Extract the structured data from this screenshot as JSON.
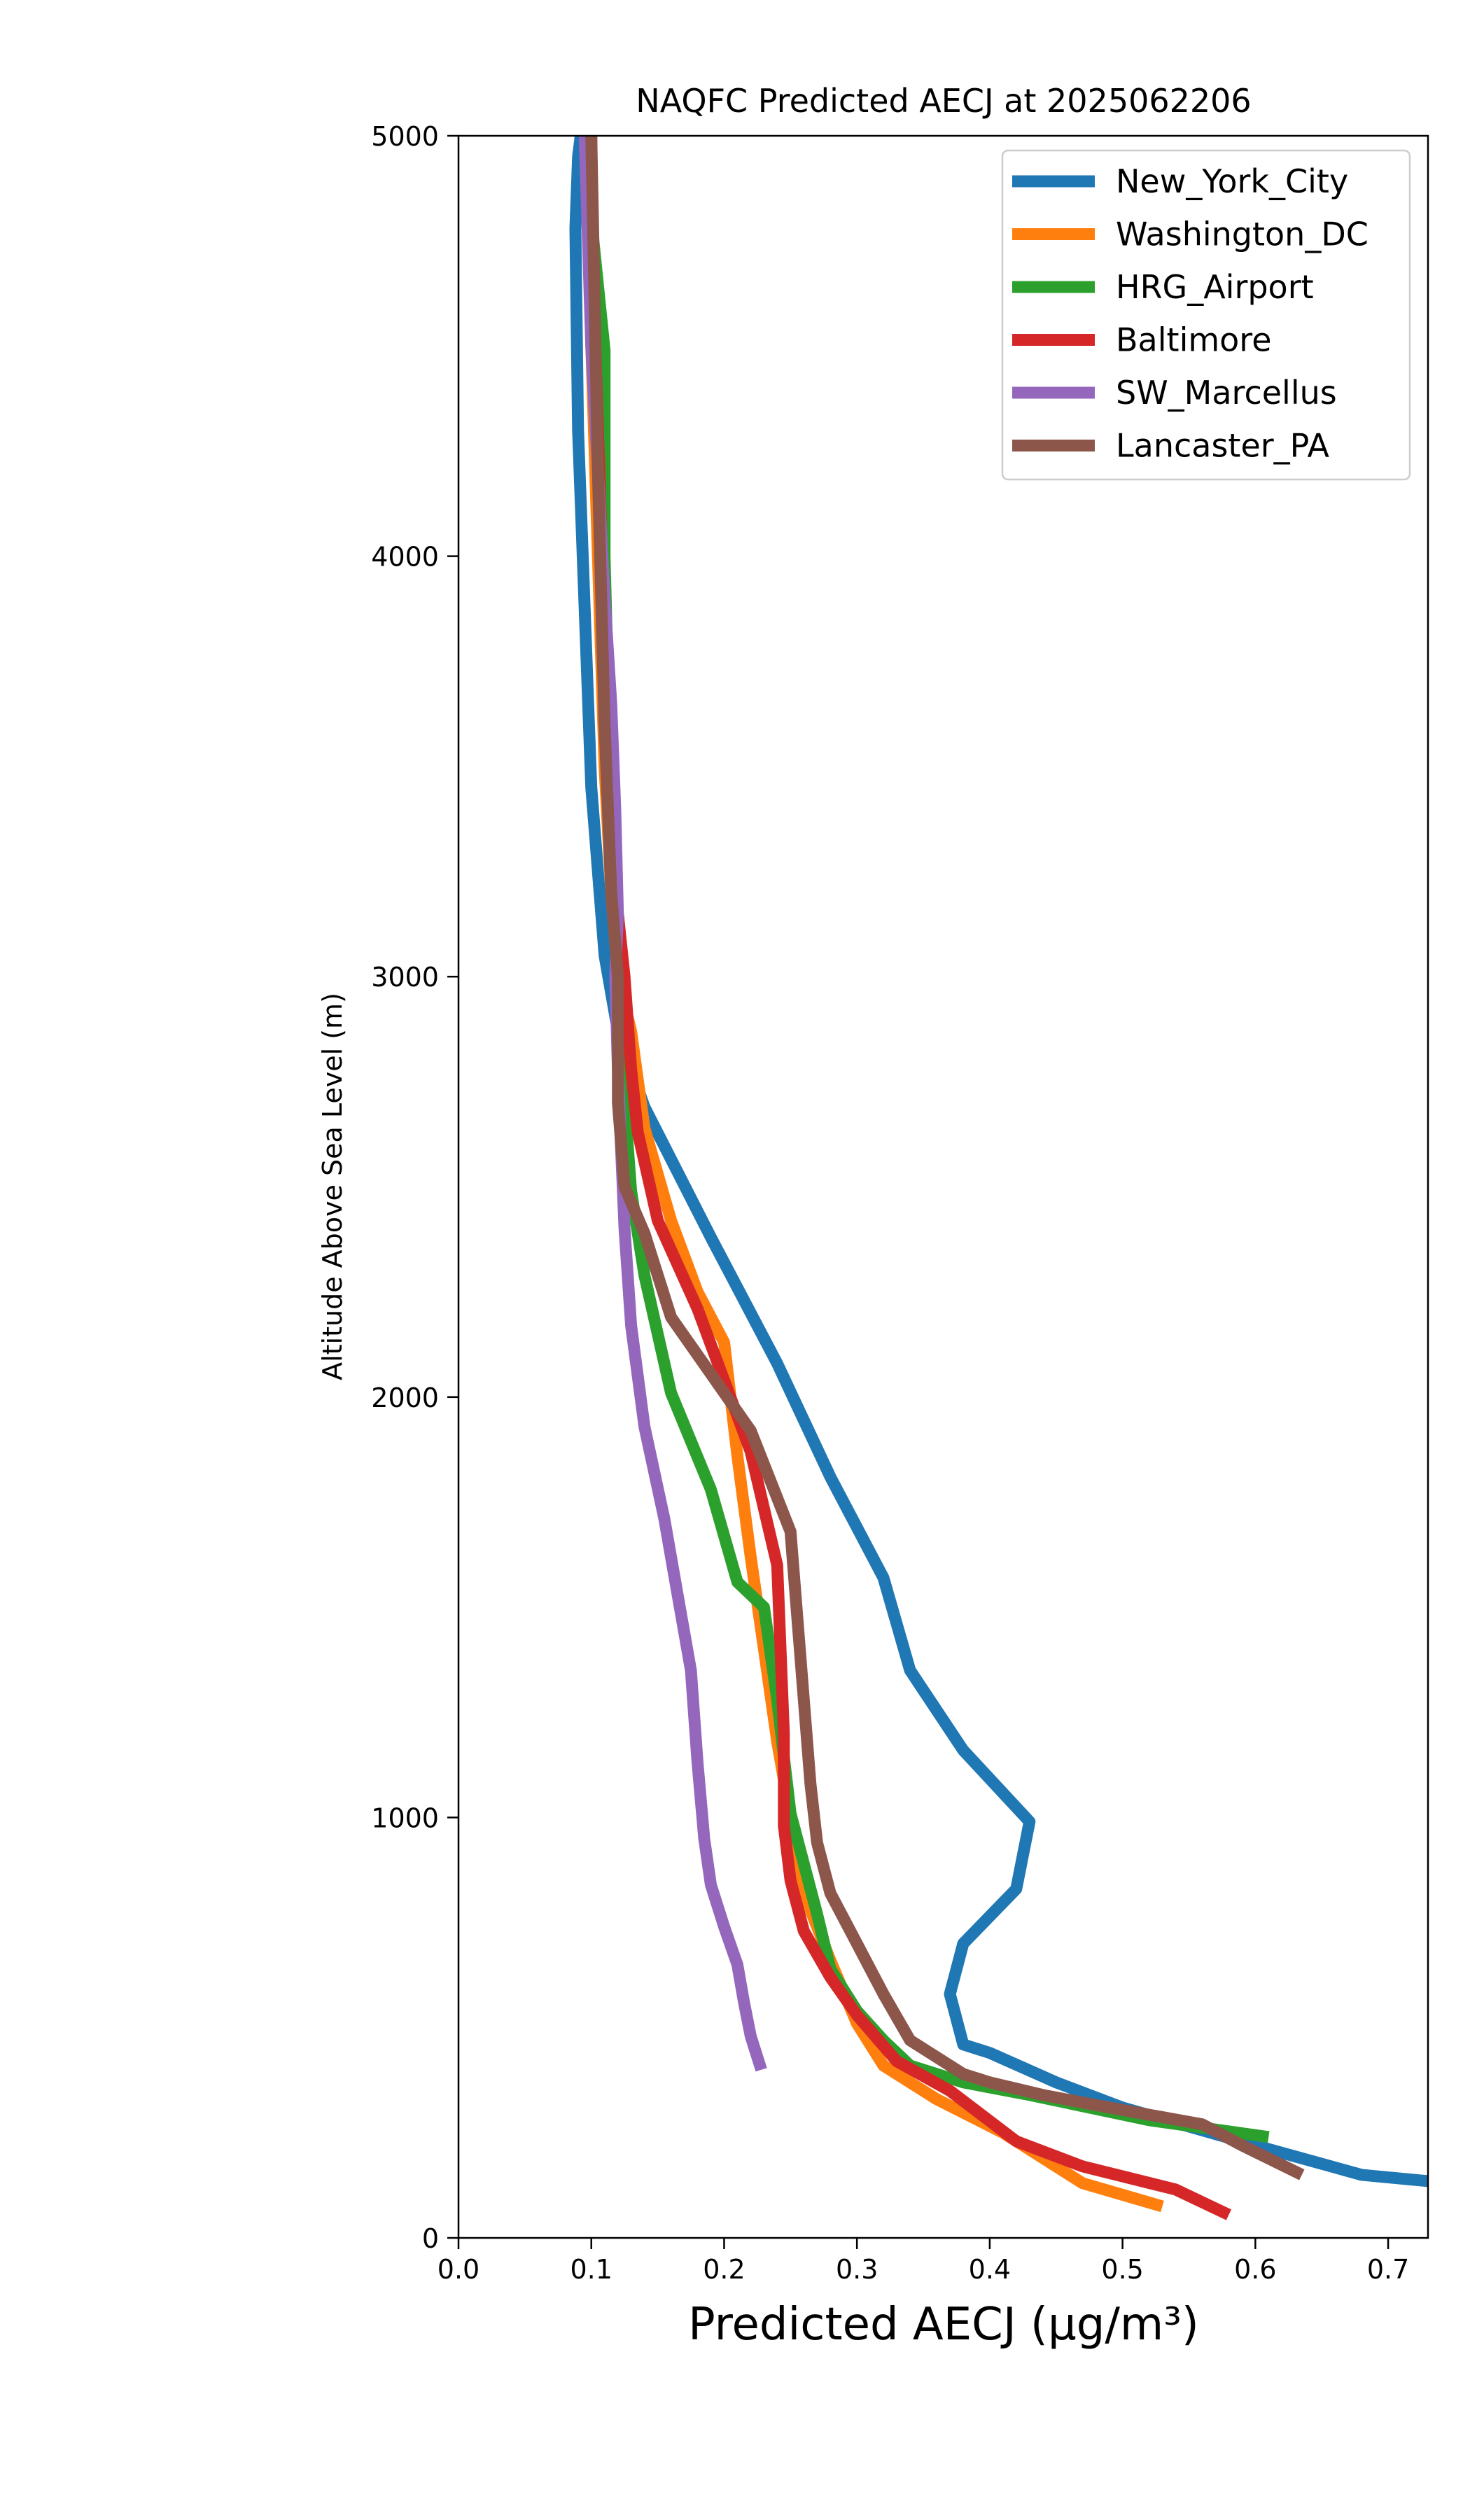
{
  "chart_data": {
    "type": "line",
    "title": "NAQFC Predicted AECJ at 2025062206",
    "xlabel": "Predicted AECJ (μg/m³)",
    "ylabel": "Altitude Above Sea Level (m)",
    "xlim": [
      0.0,
      0.73
    ],
    "ylim": [
      0,
      5000
    ],
    "xticks": [
      "0.0",
      "0.1",
      "0.2",
      "0.3",
      "0.4",
      "0.5",
      "0.6",
      "0.7"
    ],
    "yticks": [
      "0",
      "1000",
      "2000",
      "3000",
      "4000",
      "5000"
    ],
    "grid": false,
    "legend_position": "top-right",
    "series": [
      {
        "name": "New_York_City",
        "color": "#1f77b4",
        "x": [
          0.73,
          0.68,
          0.6,
          0.5,
          0.45,
          0.4,
          0.38,
          0.37,
          0.38,
          0.42,
          0.43,
          0.38,
          0.34,
          0.32,
          0.28,
          0.24,
          0.19,
          0.14,
          0.12,
          0.11,
          0.1,
          0.09,
          0.088,
          0.09,
          0.092
        ],
        "y": [
          135,
          150,
          220,
          310,
          370,
          440,
          460,
          580,
          700,
          830,
          990,
          1160,
          1350,
          1570,
          1810,
          2080,
          2380,
          2690,
          2870,
          3050,
          3450,
          4300,
          4780,
          4950,
          5000
        ]
      },
      {
        "name": "Washington_DC",
        "color": "#ff7f0e",
        "x": [
          0.53,
          0.47,
          0.41,
          0.36,
          0.32,
          0.3,
          0.28,
          0.26,
          0.25,
          0.24,
          0.23,
          0.22,
          0.21,
          0.2,
          0.18,
          0.16,
          0.14,
          0.13,
          0.12,
          0.115,
          0.11,
          0.105,
          0.1,
          0.098,
          0.1
        ],
        "y": [
          75,
          130,
          250,
          330,
          410,
          510,
          660,
          820,
          1000,
          1180,
          1400,
          1620,
          1860,
          2130,
          2250,
          2420,
          2640,
          2870,
          3000,
          3200,
          3500,
          4000,
          4500,
          4800,
          5000
        ]
      },
      {
        "name": "HRG_Airport",
        "color": "#2ca02c",
        "x": [
          0.61,
          0.52,
          0.43,
          0.38,
          0.34,
          0.32,
          0.3,
          0.28,
          0.27,
          0.25,
          0.24,
          0.23,
          0.21,
          0.19,
          0.16,
          0.14,
          0.13,
          0.125,
          0.12,
          0.115,
          0.11,
          0.11,
          0.11,
          0.1,
          0.098
        ],
        "y": [
          240,
          280,
          340,
          370,
          410,
          470,
          540,
          640,
          770,
          1010,
          1280,
          1500,
          1560,
          1780,
          2010,
          2290,
          2490,
          2700,
          3000,
          3400,
          4000,
          4450,
          4490,
          4800,
          5000
        ]
      },
      {
        "name": "Baltimore",
        "color": "#d62728",
        "x": [
          0.58,
          0.54,
          0.47,
          0.42,
          0.37,
          0.33,
          0.3,
          0.28,
          0.26,
          0.25,
          0.245,
          0.245,
          0.24,
          0.22,
          0.18,
          0.15,
          0.135,
          0.13,
          0.125,
          0.12,
          0.115,
          0.11,
          0.105,
          0.1,
          0.1
        ],
        "y": [
          55,
          115,
          170,
          230,
          350,
          420,
          530,
          620,
          730,
          850,
          980,
          1200,
          1600,
          1870,
          2210,
          2420,
          2630,
          2780,
          3000,
          3150,
          3400,
          3800,
          4300,
          4800,
          5000
        ]
      },
      {
        "name": "SW_Marcellus",
        "color": "#9467bd",
        "x": [
          0.228,
          0.22,
          0.215,
          0.21,
          0.2,
          0.19,
          0.185,
          0.18,
          0.175,
          0.165,
          0.155,
          0.14,
          0.13,
          0.125,
          0.122,
          0.12,
          0.118,
          0.12,
          0.118,
          0.115,
          0.11,
          0.105,
          0.1,
          0.097,
          0.095
        ],
        "y": [
          400,
          480,
          560,
          650,
          740,
          840,
          950,
          1130,
          1350,
          1530,
          1710,
          1930,
          2170,
          2400,
          2620,
          2780,
          3000,
          3150,
          3400,
          3650,
          3900,
          4200,
          4500,
          4800,
          5000
        ]
      },
      {
        "name": "Lancaster_PA",
        "color": "#8c564b",
        "x": [
          0.635,
          0.59,
          0.56,
          0.49,
          0.44,
          0.4,
          0.38,
          0.34,
          0.32,
          0.3,
          0.28,
          0.27,
          0.265,
          0.26,
          0.25,
          0.22,
          0.16,
          0.14,
          0.125,
          0.12,
          0.12,
          0.115,
          0.11,
          0.105,
          0.1
        ],
        "y": [
          150,
          220,
          270,
          310,
          340,
          370,
          390,
          470,
          580,
          700,
          820,
          940,
          1080,
          1280,
          1680,
          1920,
          2190,
          2390,
          2500,
          2700,
          3000,
          3200,
          3600,
          4200,
          5000
        ]
      }
    ]
  }
}
